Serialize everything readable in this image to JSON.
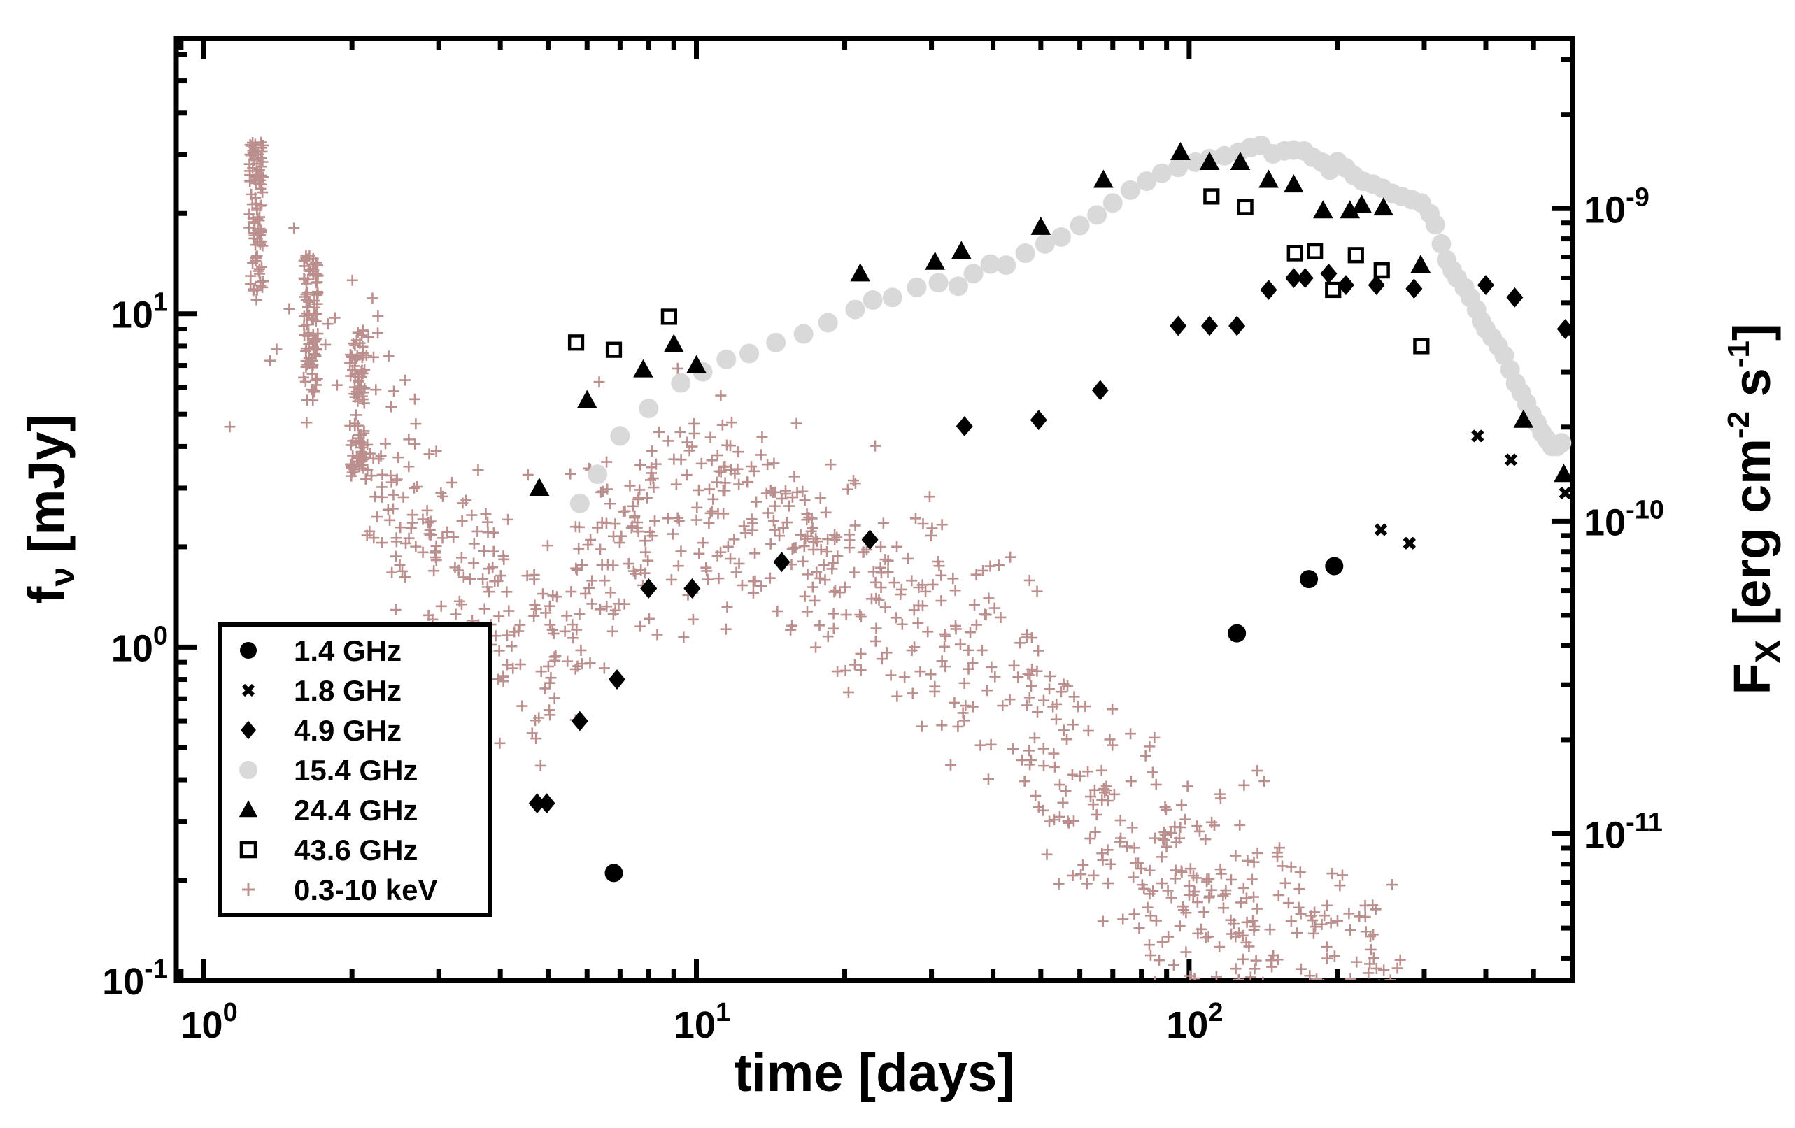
{
  "chart_data": {
    "type": "scatter",
    "x_axis": {
      "label": "time [days]",
      "scale": "log",
      "range": [
        0.88,
        600
      ],
      "major_ticks": [
        {
          "value": 1,
          "base": "10",
          "exp": "0"
        },
        {
          "value": 10,
          "base": "10",
          "exp": "1"
        },
        {
          "value": 100,
          "base": "10",
          "exp": "2"
        }
      ]
    },
    "y_axis_left": {
      "label_main": "f",
      "label_sub": "ν",
      "label_unit": " [mJy]",
      "scale": "log",
      "range": [
        0.1,
        67
      ],
      "major_ticks": [
        {
          "value": 0.1,
          "base": "10",
          "exp": "-1"
        },
        {
          "value": 1,
          "base": "10",
          "exp": "0"
        },
        {
          "value": 10,
          "base": "10",
          "exp": "1"
        }
      ]
    },
    "y_axis_right": {
      "label_main": "F",
      "label_sub": "X",
      "label_unit_a": " [erg cm",
      "label_exp_a": "-2",
      "label_unit_b": " s",
      "label_exp_b": "-1",
      "label_unit_c": "]",
      "scale": "log",
      "range": [
        3.4e-12,
        3.5e-09
      ],
      "major_ticks": [
        {
          "value": 1e-11,
          "base": "10",
          "exp": "-11"
        },
        {
          "value": 1e-10,
          "base": "10",
          "exp": "-10"
        },
        {
          "value": 1e-09,
          "base": "10",
          "exp": "-9"
        }
      ]
    },
    "legend_position": "bottom-left",
    "series": [
      {
        "name": "1.4 GHz",
        "marker": "circle",
        "color": "#000000",
        "axis": "left",
        "points": [
          [
            6.8,
            0.21
          ],
          [
            125,
            1.1
          ],
          [
            175,
            1.6
          ],
          [
            197,
            1.75
          ]
        ]
      },
      {
        "name": "1.8 GHz",
        "marker": "x",
        "color": "#000000",
        "axis": "left",
        "points": [
          [
            245,
            2.25
          ],
          [
            280,
            2.05
          ],
          [
            385,
            4.3
          ],
          [
            450,
            3.65
          ],
          [
            580,
            2.9
          ]
        ]
      },
      {
        "name": "4.9 GHz",
        "marker": "diamond",
        "color": "#000000",
        "axis": "left",
        "points": [
          [
            4.75,
            0.34
          ],
          [
            4.97,
            0.34
          ],
          [
            5.8,
            0.6
          ],
          [
            6.9,
            0.8
          ],
          [
            8.0,
            1.5
          ],
          [
            9.8,
            1.5
          ],
          [
            14.9,
            1.8
          ],
          [
            22.5,
            2.1
          ],
          [
            35.0,
            4.6
          ],
          [
            49.5,
            4.8
          ],
          [
            66.0,
            5.9
          ],
          [
            95.0,
            9.2
          ],
          [
            110,
            9.2
          ],
          [
            125,
            9.2
          ],
          [
            145,
            11.8
          ],
          [
            163,
            12.8
          ],
          [
            172,
            12.8
          ],
          [
            192,
            13.2
          ],
          [
            208,
            12.2
          ],
          [
            240,
            12.2
          ],
          [
            286,
            11.9
          ],
          [
            400,
            12.2
          ],
          [
            458,
            11.2
          ],
          [
            580,
            9.0
          ]
        ]
      },
      {
        "name": "15.4 GHz",
        "marker": "circle",
        "color": "#d9d9d9",
        "axis": "left",
        "points": [
          [
            5.8,
            2.7
          ],
          [
            6.3,
            3.3
          ],
          [
            7.0,
            4.3
          ],
          [
            8.0,
            5.2
          ],
          [
            9.3,
            6.2
          ],
          [
            10.3,
            6.7
          ],
          [
            11.5,
            7.3
          ],
          [
            12.8,
            7.6
          ],
          [
            14.5,
            8.2
          ],
          [
            16.5,
            8.7
          ],
          [
            18.5,
            9.4
          ],
          [
            21.0,
            10.3
          ],
          [
            22.8,
            11.0
          ],
          [
            25.0,
            11.2
          ],
          [
            28.0,
            12.0
          ],
          [
            31.0,
            12.4
          ],
          [
            34.0,
            12.1
          ],
          [
            36.5,
            13.2
          ],
          [
            39.5,
            14.1
          ],
          [
            42.5,
            14.0
          ],
          [
            46.5,
            15.2
          ],
          [
            51.0,
            16.2
          ],
          [
            55.0,
            17.0
          ],
          [
            60.0,
            18.4
          ],
          [
            65.0,
            19.8
          ],
          [
            70.0,
            21.5
          ],
          [
            76.0,
            23.5
          ],
          [
            82.0,
            25.0
          ],
          [
            88.0,
            26.4
          ],
          [
            95.0,
            27.5
          ],
          [
            103.0,
            28.5
          ],
          [
            110.0,
            29.2
          ],
          [
            118.0,
            29.8
          ],
          [
            126.0,
            30.5
          ],
          [
            133.0,
            31.5
          ],
          [
            140.0,
            32.0
          ],
          [
            148.0,
            30.2
          ],
          [
            156.0,
            30.8
          ],
          [
            163.0,
            31.0
          ],
          [
            171.0,
            30.8
          ],
          [
            178.0,
            29.5
          ],
          [
            186.0,
            28.5
          ],
          [
            193.0,
            27.0
          ],
          [
            200.0,
            28.6
          ],
          [
            208.0,
            27.4
          ],
          [
            216.0,
            26.0
          ],
          [
            225.0,
            25.0
          ],
          [
            236.0,
            24.5
          ],
          [
            247.0,
            23.8
          ],
          [
            258.0,
            23.0
          ],
          [
            270.0,
            22.5
          ],
          [
            283.0,
            22.0
          ],
          [
            296.0,
            21.5
          ],
          [
            308.0,
            20.0
          ],
          [
            316.0,
            18.5
          ],
          [
            325.0,
            16.2
          ],
          [
            333.0,
            14.5
          ],
          [
            342.0,
            13.5
          ],
          [
            350.0,
            12.8
          ],
          [
            362.0,
            12.0
          ],
          [
            372.0,
            11.2
          ],
          [
            383.0,
            10.3
          ],
          [
            392.0,
            9.5
          ],
          [
            400.0,
            9.0
          ],
          [
            412.0,
            8.5
          ],
          [
            424.0,
            8.0
          ],
          [
            436.0,
            7.5
          ],
          [
            448.0,
            6.8
          ],
          [
            460.0,
            6.2
          ],
          [
            472.0,
            5.8
          ],
          [
            484.0,
            5.4
          ],
          [
            496.0,
            5.0
          ],
          [
            508.0,
            4.7
          ],
          [
            520.0,
            4.4
          ],
          [
            532.0,
            4.2
          ],
          [
            545.0,
            4.0
          ],
          [
            558.0,
            4.0
          ],
          [
            570.0,
            4.1
          ]
        ]
      },
      {
        "name": "24.4 GHz",
        "marker": "triangle",
        "color": "#000000",
        "axis": "left",
        "points": [
          [
            4.8,
            3.0
          ],
          [
            6.0,
            5.5
          ],
          [
            7.8,
            6.8
          ],
          [
            9.0,
            8.1
          ],
          [
            10.0,
            7.0
          ],
          [
            21.5,
            13.2
          ],
          [
            30.5,
            14.3
          ],
          [
            34.5,
            15.4
          ],
          [
            50.0,
            18.2
          ],
          [
            67.0,
            25.2
          ],
          [
            96.0,
            30.5
          ],
          [
            110.0,
            28.5
          ],
          [
            127.0,
            28.5
          ],
          [
            145.0,
            25.2
          ],
          [
            163.0,
            24.4
          ],
          [
            187.0,
            20.4
          ],
          [
            212.0,
            20.4
          ],
          [
            224.0,
            21.2
          ],
          [
            248.0,
            20.8
          ],
          [
            295.0,
            14.0
          ],
          [
            477.0,
            4.8
          ],
          [
            576.0,
            3.3
          ]
        ]
      },
      {
        "name": "43.6 GHz",
        "marker": "square-open",
        "color": "#000000",
        "axis": "left",
        "points": [
          [
            5.7,
            8.2
          ],
          [
            6.8,
            7.8
          ],
          [
            8.8,
            9.8
          ],
          [
            111.0,
            22.5
          ],
          [
            130.0,
            20.9
          ],
          [
            164.0,
            15.2
          ],
          [
            180.0,
            15.4
          ],
          [
            196.0,
            11.8
          ],
          [
            218.0,
            15.0
          ],
          [
            246.0,
            13.5
          ],
          [
            296.0,
            8.0
          ]
        ]
      },
      {
        "name": "0.3-10 keV",
        "marker": "plus",
        "color": "#bc8f8f",
        "axis": "right",
        "points": []
      }
    ]
  }
}
